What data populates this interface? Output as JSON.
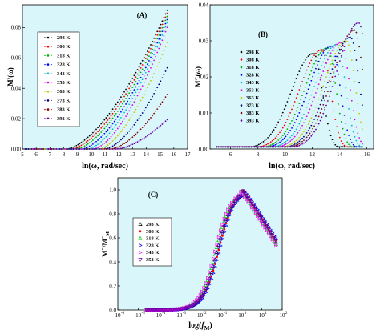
{
  "colors": {
    "panel_bg": "#d9f7fb",
    "legend_bg": "#ffffff",
    "axis": "#000000"
  },
  "chart_data": [
    {
      "id": "A",
      "type": "scatter",
      "panel_label": "(A)",
      "xlabel": "ln(ω, rad/sec)",
      "ylabel": "M′(ω)",
      "xlim": [
        5,
        17
      ],
      "ylim": [
        0,
        0.095
      ],
      "x_ticks": [
        5,
        6,
        7,
        8,
        9,
        10,
        11,
        12,
        13,
        14,
        15,
        16,
        17
      ],
      "x_tick_labels": [
        "5",
        "6",
        "7",
        "8",
        "9",
        "10",
        "11",
        "12",
        "13",
        "14",
        "15",
        "16",
        "17"
      ],
      "y_ticks": [
        0.0,
        0.02,
        0.04,
        0.06,
        0.08
      ],
      "y_tick_labels": [
        "0.00",
        "0.02",
        "0.04",
        "0.06",
        "0.08"
      ],
      "series": [
        {
          "name": "298 K",
          "color": "#000000",
          "shift": 0.0
        },
        {
          "name": "308 K",
          "color": "#ff0000",
          "shift": 0.25
        },
        {
          "name": "318 K",
          "color": "#00b000",
          "shift": 0.5
        },
        {
          "name": "328 K",
          "color": "#0000ff",
          "shift": 0.8
        },
        {
          "name": "343 K",
          "color": "#00bcd4",
          "shift": 1.1
        },
        {
          "name": "353 K",
          "color": "#e000e0",
          "shift": 1.4
        },
        {
          "name": "363 K",
          "color": "#c8c800",
          "shift": 1.7
        },
        {
          "name": "373 K",
          "color": "#000080",
          "shift": 2.0
        },
        {
          "name": "383 K",
          "color": "#8b0000",
          "shift": 2.3
        },
        {
          "name": "393 K",
          "color": "#6a00a8",
          "shift": 2.6
        }
      ]
    },
    {
      "id": "B",
      "type": "scatter",
      "panel_label": "(B)",
      "xlabel": "ln(ω, rad/sec)",
      "ylabel": "M″(ω)",
      "xlim": [
        4.5,
        16.5
      ],
      "ylim": [
        0,
        0.04
      ],
      "x_ticks": [
        6,
        8,
        10,
        12,
        14,
        16
      ],
      "x_tick_labels": [
        "6",
        "8",
        "10",
        "12",
        "14",
        "16"
      ],
      "y_ticks": [
        0.0,
        0.01,
        0.02,
        0.03,
        0.04
      ],
      "y_tick_labels": [
        "0.00",
        "0.01",
        "0.02",
        "0.03",
        "0.04"
      ],
      "series": [
        {
          "name": "298 K",
          "color": "#000000",
          "peak_x": 12.1,
          "peak_y": 0.0265
        },
        {
          "name": "308 K",
          "color": "#ff0000",
          "peak_x": 12.7,
          "peak_y": 0.0275
        },
        {
          "name": "318 K",
          "color": "#00b000",
          "peak_x": 13.1,
          "peak_y": 0.028
        },
        {
          "name": "328 K",
          "color": "#0000ff",
          "peak_x": 13.4,
          "peak_y": 0.0285
        },
        {
          "name": "343 K",
          "color": "#00bcd4",
          "peak_x": 13.8,
          "peak_y": 0.029
        },
        {
          "name": "353 K",
          "color": "#e000e0",
          "peak_x": 14.1,
          "peak_y": 0.0295
        },
        {
          "name": "363 K",
          "color": "#c8c800",
          "peak_x": 14.5,
          "peak_y": 0.03
        },
        {
          "name": "373 K",
          "color": "#000080",
          "peak_x": 14.8,
          "peak_y": 0.031
        },
        {
          "name": "383 K",
          "color": "#8b0000",
          "peak_x": 15.1,
          "peak_y": 0.033
        },
        {
          "name": "393 K",
          "color": "#6a00a8",
          "peak_x": 15.4,
          "peak_y": 0.035
        }
      ]
    },
    {
      "id": "C",
      "type": "scatter",
      "panel_label": "(C)",
      "xlabel": "log(f/f_M)",
      "ylabel": "M″/M″_M",
      "x_scale": "log",
      "xlim": [
        1e-06,
        100
      ],
      "ylim": [
        0,
        1.1
      ],
      "x_ticks": [
        -6,
        -5,
        -4,
        -3,
        -2,
        -1,
        0,
        1,
        2
      ],
      "x_tick_labels": [
        "10",
        "10",
        "10",
        "10",
        "10",
        "10",
        "10",
        "10",
        "10"
      ],
      "x_tick_exponents": [
        "-6",
        "-5",
        "-4",
        "-3",
        "-2",
        "-1",
        "0",
        "1",
        "2"
      ],
      "y_ticks": [
        0.0,
        0.2,
        0.4,
        0.6,
        0.8,
        1.0
      ],
      "y_tick_labels": [
        "0.0",
        "0.2",
        "0.4",
        "0.6",
        "0.8",
        "1.0"
      ],
      "series": [
        {
          "name": "293 K",
          "color": "#000000",
          "marker": "triangle-up",
          "shift": 0.0
        },
        {
          "name": "308 K",
          "color": "#ff0000",
          "marker": "circle",
          "shift": 0.06
        },
        {
          "name": "318 K",
          "color": "#00c000",
          "marker": "triangle-up",
          "shift": -0.06
        },
        {
          "name": "328 K",
          "color": "#0000ff",
          "marker": "triangle-right",
          "shift": 0.1
        },
        {
          "name": "343 K",
          "color": "#ff00ff",
          "marker": "triangle-right",
          "shift": -0.1
        },
        {
          "name": "353 K",
          "color": "#6a00a8",
          "marker": "triangle-down",
          "shift": 0.03
        }
      ]
    }
  ]
}
